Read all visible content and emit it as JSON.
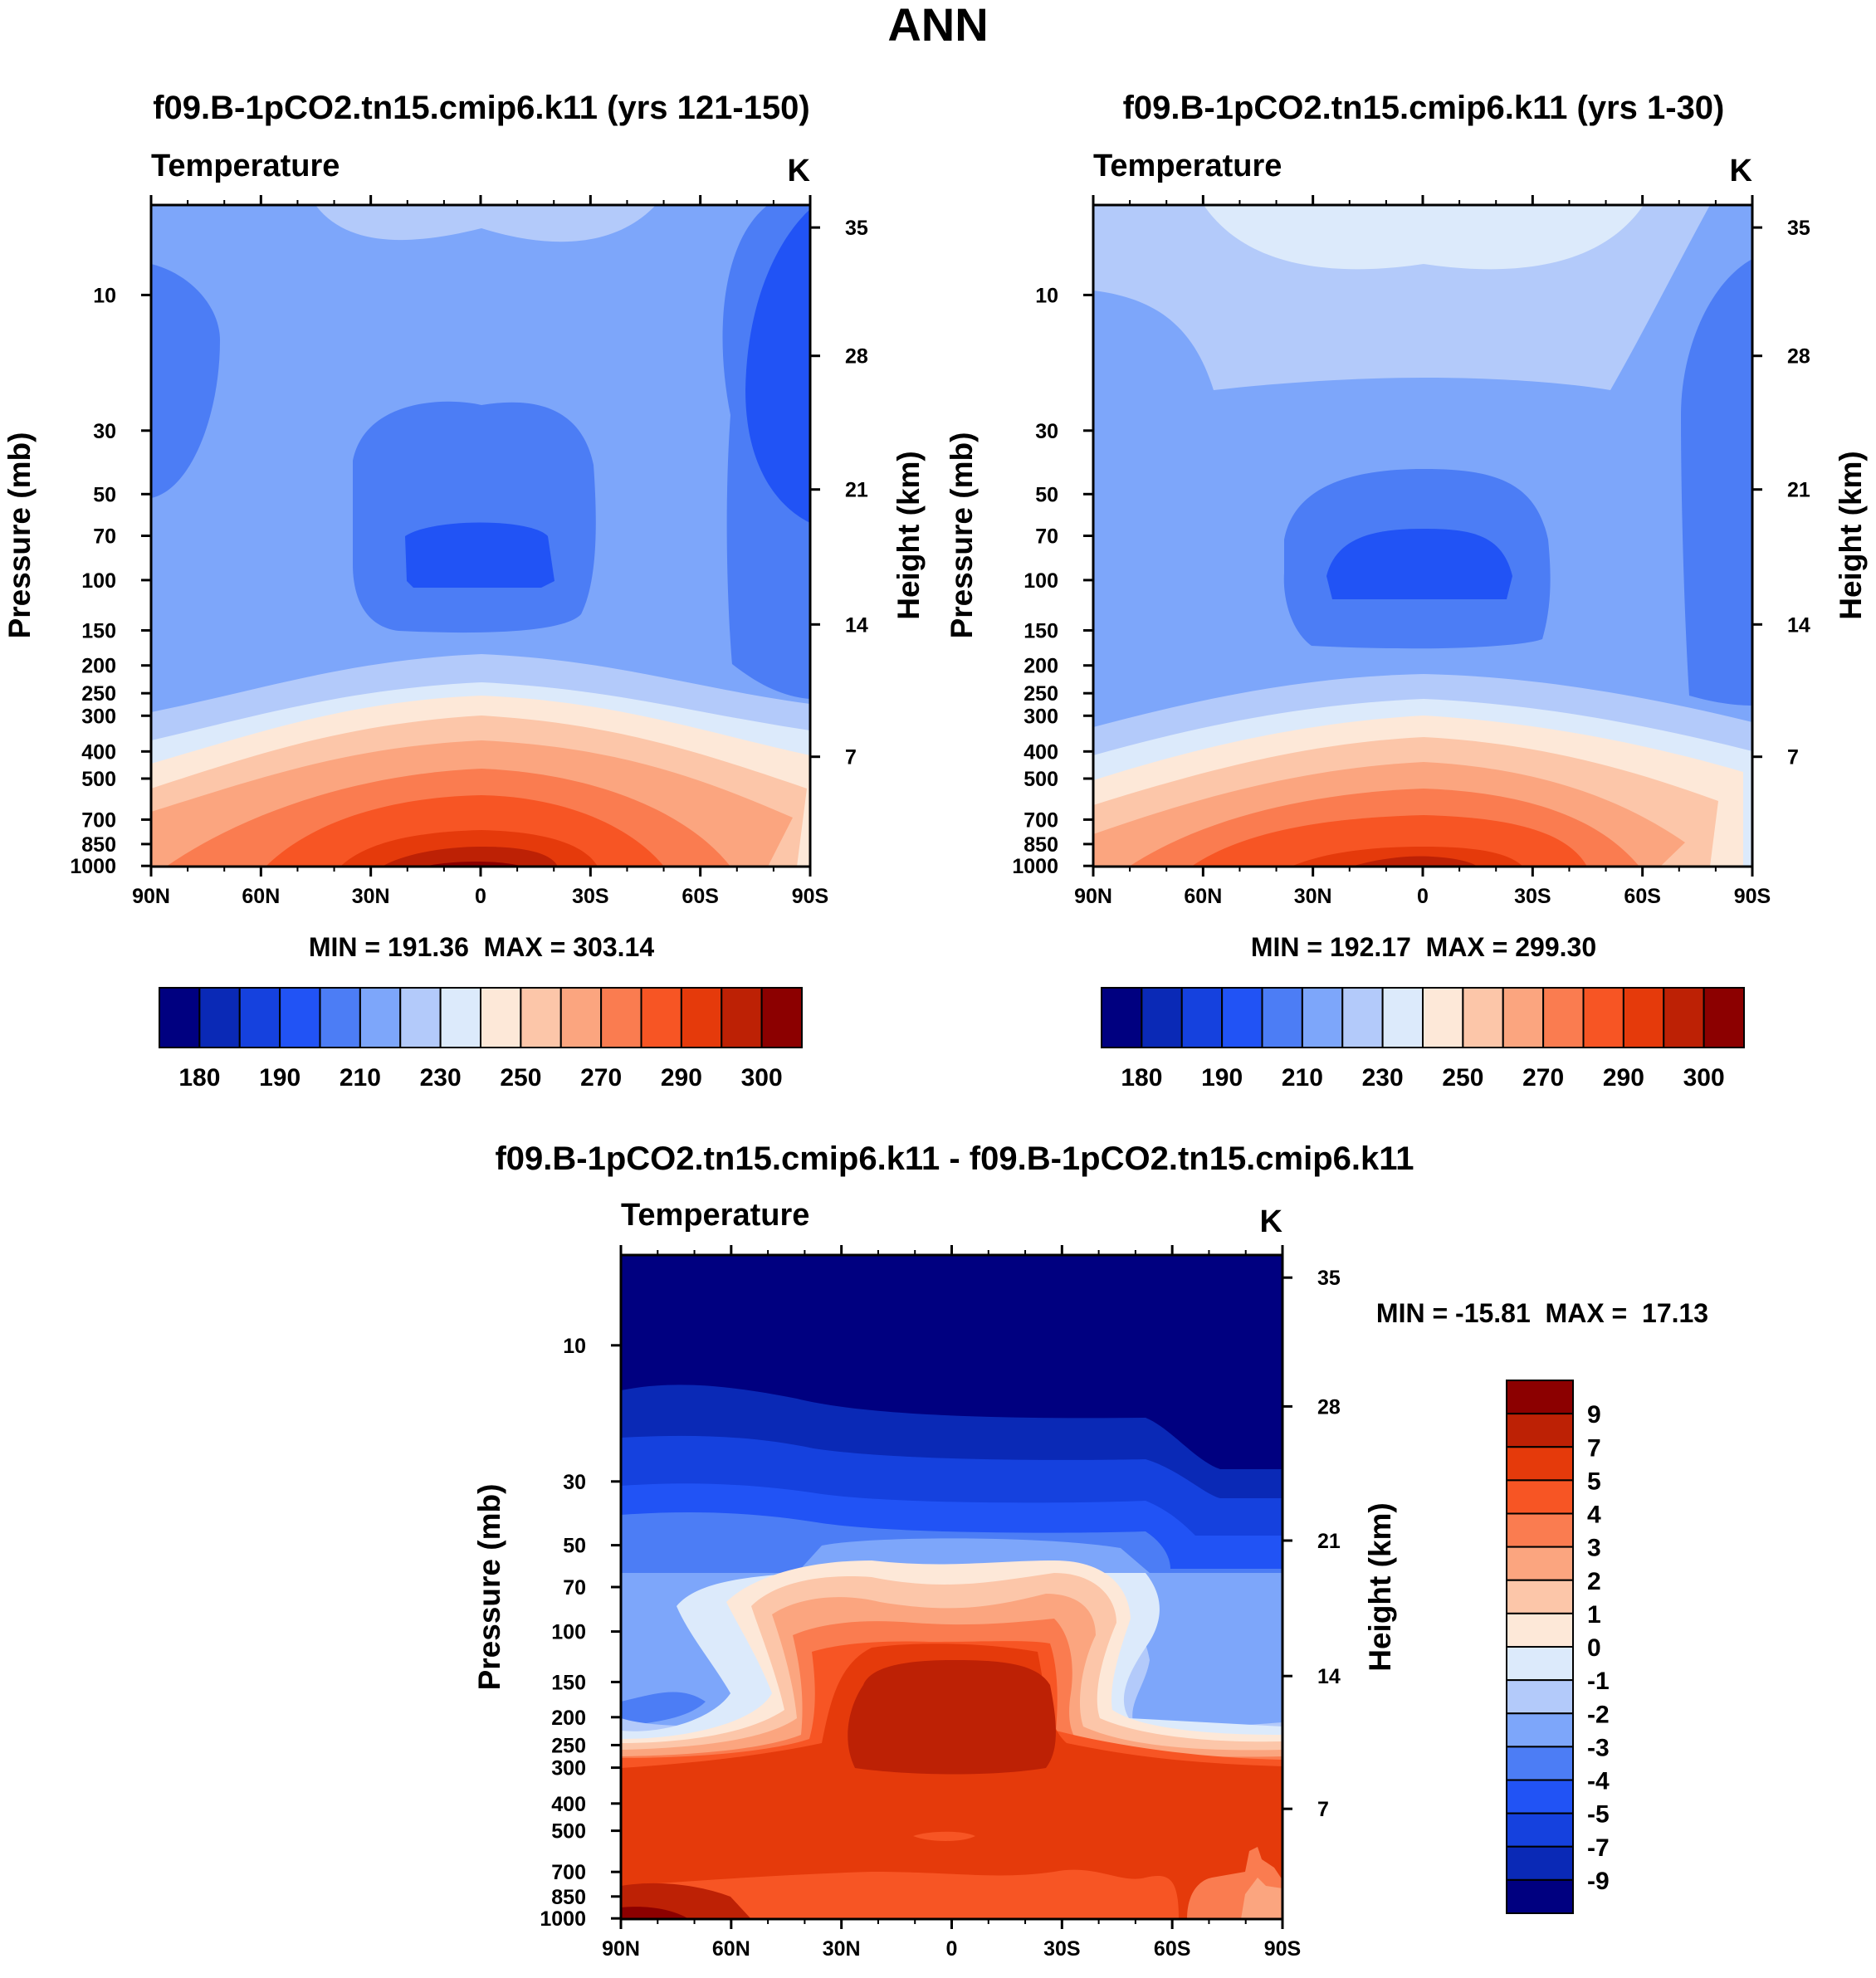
{
  "figure_title": "ANN",
  "chart_data": [
    {
      "id": "p1",
      "type": "heatmap",
      "subtype": "filled-contour",
      "title": "f09.B-1pCO2.tn15.cmip6.k11 (yrs 121-150)",
      "variable": "Temperature",
      "units": "K",
      "xlabel": "",
      "ylabel": "Pressure (mb)",
      "ylabel_right": "Height (km)",
      "x_ticks": [
        "90N",
        "60N",
        "30N",
        "0",
        "30S",
        "60S",
        "90S"
      ],
      "y_ticks": [
        "10",
        "30",
        "50",
        "70",
        "100",
        "150",
        "200",
        "250",
        "300",
        "400",
        "500",
        "700",
        "850",
        "1000"
      ],
      "y2_ticks": [
        "35",
        "28",
        "21",
        "14",
        "7"
      ],
      "stats_text": "MIN = 191.36  MAX = 303.14",
      "min": 191.36,
      "max": 303.14,
      "colorbar_labels": [
        "180",
        "190",
        "210",
        "230",
        "250",
        "270",
        "290",
        "300"
      ],
      "colorbar_orientation": "horizontal"
    },
    {
      "id": "p2",
      "type": "heatmap",
      "subtype": "filled-contour",
      "title": "f09.B-1pCO2.tn15.cmip6.k11 (yrs 1-30)",
      "variable": "Temperature",
      "units": "K",
      "xlabel": "",
      "ylabel": "Pressure (mb)",
      "ylabel_right": "Height (km)",
      "x_ticks": [
        "90N",
        "60N",
        "30N",
        "0",
        "30S",
        "60S",
        "90S"
      ],
      "y_ticks": [
        "10",
        "30",
        "50",
        "70",
        "100",
        "150",
        "200",
        "250",
        "300",
        "400",
        "500",
        "700",
        "850",
        "1000"
      ],
      "y2_ticks": [
        "35",
        "28",
        "21",
        "14",
        "7"
      ],
      "stats_text": "MIN = 192.17  MAX = 299.30",
      "min": 192.17,
      "max": 299.3,
      "colorbar_labels": [
        "180",
        "190",
        "210",
        "230",
        "250",
        "270",
        "290",
        "300"
      ],
      "colorbar_orientation": "horizontal"
    },
    {
      "id": "p3",
      "type": "heatmap",
      "subtype": "filled-contour",
      "title": "f09.B-1pCO2.tn15.cmip6.k11 - f09.B-1pCO2.tn15.cmip6.k11",
      "variable": "Temperature",
      "units": "K",
      "xlabel": "",
      "ylabel": "Pressure (mb)",
      "ylabel_right": "Height (km)",
      "x_ticks": [
        "90N",
        "60N",
        "30N",
        "0",
        "30S",
        "60S",
        "90S"
      ],
      "y_ticks": [
        "10",
        "30",
        "50",
        "70",
        "100",
        "150",
        "200",
        "250",
        "300",
        "400",
        "500",
        "700",
        "850",
        "1000"
      ],
      "y2_ticks": [
        "35",
        "28",
        "21",
        "14",
        "7"
      ],
      "stats_text": "MIN = -15.81  MAX =  17.13",
      "min": -15.81,
      "max": 17.13,
      "colorbar_labels": [
        "9",
        "7",
        "5",
        "4",
        "3",
        "2",
        "1",
        "0",
        "-1",
        "-2",
        "-3",
        "-4",
        "-5",
        "-7",
        "-9"
      ],
      "colorbar_orientation": "vertical"
    }
  ],
  "palettes": {
    "absolute": [
      "#000080",
      "#0a29b6",
      "#1541de",
      "#2153f5",
      "#4c7df5",
      "#7da6fa",
      "#b3cafa",
      "#dceafb",
      "#fde8d8",
      "#fcc6a9",
      "#fba57f",
      "#fa7c50",
      "#f75524",
      "#e53a0b",
      "#bd2105",
      "#8c0000"
    ],
    "difference": [
      "#8c0000",
      "#bd2105",
      "#e53a0b",
      "#f75524",
      "#fa7c50",
      "#fba57f",
      "#fcc6a9",
      "#fde8d8",
      "#dceafb",
      "#b3cafa",
      "#7da6fa",
      "#4c7df5",
      "#2153f5",
      "#1541de",
      "#0a29b6",
      "#000080"
    ]
  }
}
